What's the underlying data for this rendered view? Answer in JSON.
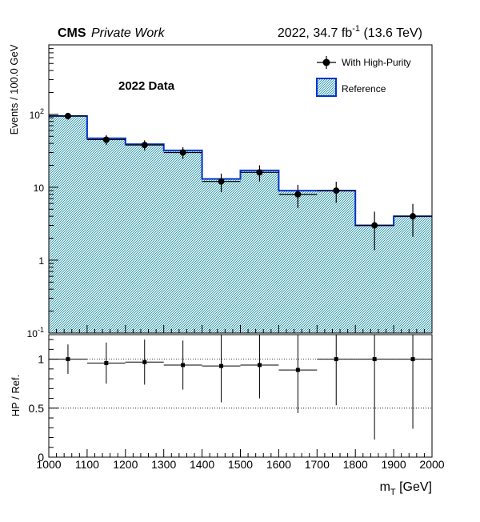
{
  "header": {
    "cms": "CMS",
    "private_work": "Private Work",
    "lumi_prefix": "2022, 34.7 fb",
    "lumi_exp": "-1",
    "lumi_suffix": " (13.6 TeV)"
  },
  "upper_label": "2022 Data",
  "colors": {
    "data": "#000000",
    "reference_line": "#0033cc",
    "reference_fill": "#5fb0c0"
  },
  "chart_data": [
    {
      "type": "bar",
      "panel": "main",
      "ylabel": "Events / 100.0 GeV",
      "yscale": "log",
      "ylim": [
        0.1,
        900
      ],
      "xlim": [
        1000,
        2000
      ],
      "yticks": [
        {
          "v": 100,
          "base": "10",
          "exp": "2"
        },
        {
          "v": 10,
          "base": "10",
          "exp": ""
        },
        {
          "v": 1,
          "base": "1",
          "exp": ""
        },
        {
          "v": 0.1,
          "base": "10",
          "exp": "-1"
        }
      ],
      "bin_edges": [
        1000,
        1100,
        1200,
        1300,
        1400,
        1500,
        1600,
        1700,
        1800,
        1900,
        2000
      ],
      "legend": [
        {
          "label": "With High-Purity",
          "style": "marker"
        },
        {
          "label": "Reference",
          "style": "fill"
        }
      ],
      "series": [
        {
          "name": "Reference",
          "style": "histogram",
          "values": [
            95,
            47,
            39,
            32,
            13,
            17,
            9,
            9,
            3,
            4
          ]
        },
        {
          "name": "With High-Purity",
          "style": "points",
          "x": [
            1050,
            1150,
            1250,
            1350,
            1450,
            1550,
            1650,
            1750,
            1850,
            1950
          ],
          "values": [
            95,
            45,
            38,
            30,
            12,
            16,
            8,
            9,
            3,
            4
          ],
          "err_low": [
            10,
            7,
            6,
            5.5,
            3.4,
            4,
            2.8,
            2.9,
            1.63,
            1.91
          ],
          "err_high": [
            10,
            7,
            6,
            5.5,
            3.4,
            4,
            2.8,
            2.9,
            1.63,
            1.91
          ]
        }
      ]
    },
    {
      "type": "scatter",
      "panel": "ratio",
      "ylabel": "HP / Ref.",
      "xlabel_main": "m",
      "xlabel_sub": "T",
      "xlabel_unit": " [GeV]",
      "xlim": [
        1000,
        2000
      ],
      "ylim": [
        0,
        1.25
      ],
      "xticks": [
        1000,
        1100,
        1200,
        1300,
        1400,
        1500,
        1600,
        1700,
        1800,
        1900,
        2000
      ],
      "yticks": [
        0,
        0.5,
        1
      ],
      "ytick_labels": [
        "0",
        "0.5",
        "1"
      ],
      "reference_lines": [
        1,
        0.5
      ],
      "series": [
        {
          "name": "",
          "x": [
            1050,
            1150,
            1250,
            1350,
            1450,
            1550,
            1650,
            1750,
            1850,
            1950
          ],
          "values": [
            1.0,
            0.96,
            0.97,
            0.94,
            0.93,
            0.94,
            0.89,
            1.0,
            1.0,
            1.0
          ],
          "err_low": [
            0.15,
            0.21,
            0.23,
            0.25,
            0.37,
            0.34,
            0.44,
            0.47,
            0.82,
            0.71
          ],
          "err_high": [
            0.15,
            0.21,
            0.23,
            0.25,
            0.37,
            0.34,
            0.44,
            0.47,
            0.82,
            0.71
          ]
        }
      ]
    }
  ]
}
